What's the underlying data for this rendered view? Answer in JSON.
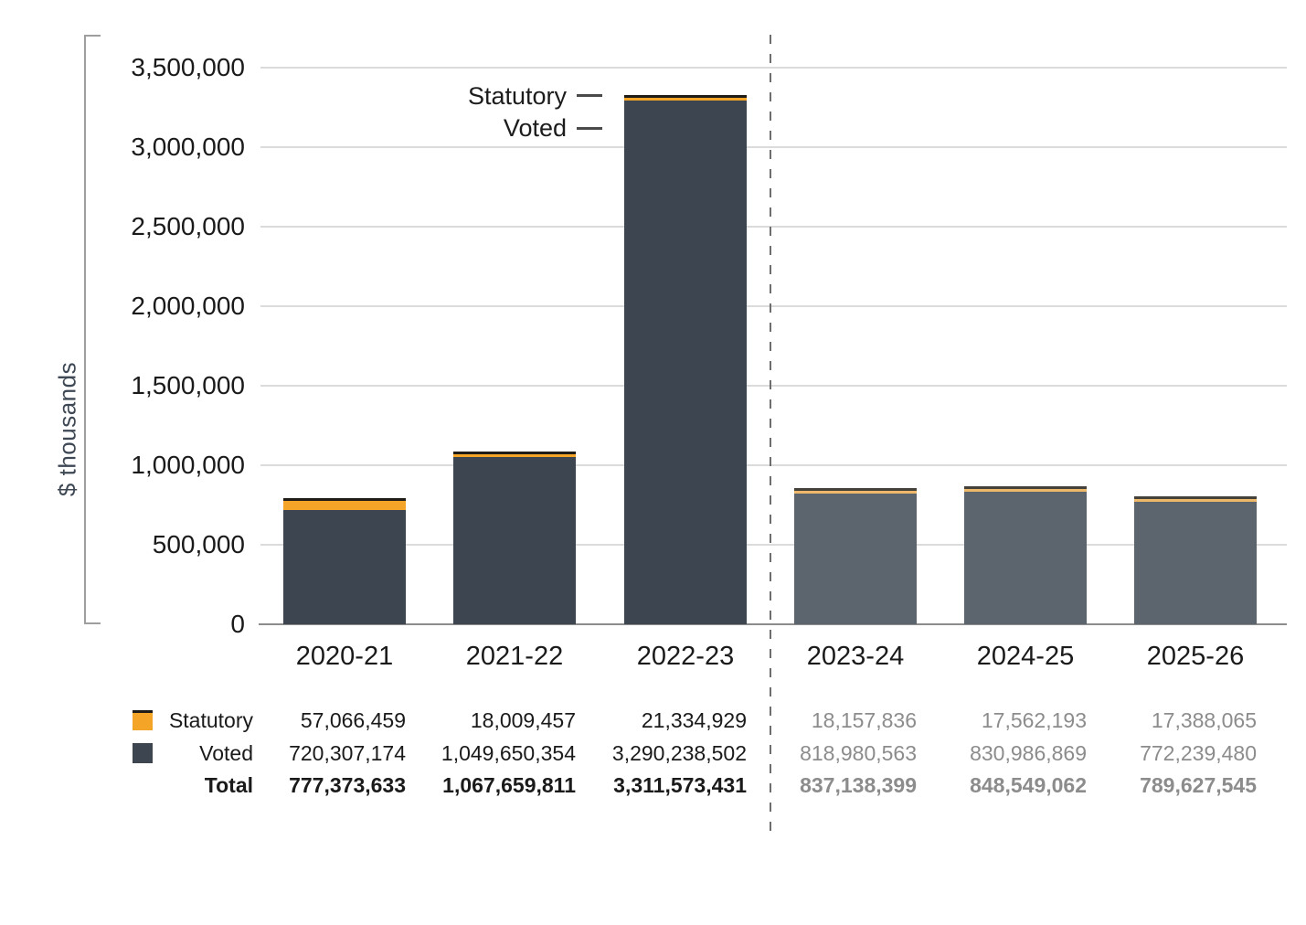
{
  "chart_data": {
    "type": "bar",
    "stacked": true,
    "ylabel": "$ thousands",
    "categories": [
      "2020-21",
      "2021-22",
      "2022-23",
      "2023-24",
      "2024-25",
      "2025-26"
    ],
    "series": [
      {
        "name": "Statutory",
        "values": [
          57066459,
          18009457,
          21334929,
          18157836,
          17562193,
          17388065
        ]
      },
      {
        "name": "Voted",
        "values": [
          720307174,
          1049650354,
          3290238502,
          818980563,
          830986869,
          772239480
        ]
      }
    ],
    "totals": [
      777373633,
      1067659811,
      3311573431,
      837138399,
      848549062,
      789627545
    ],
    "value_divisor_for_plot": 1000,
    "ylim": [
      0,
      3500000
    ],
    "ytick_step": 500000,
    "grid": true,
    "legend_position": "bottom-table",
    "forecast_from_index": 3,
    "annotations": {
      "statutory": "Statutory",
      "voted": "Voted"
    }
  },
  "table": {
    "rows": [
      {
        "label": "Statutory",
        "swatch": "statutory",
        "bold": false,
        "values": [
          "57,066,459",
          "18,009,457",
          "21,334,929",
          "18,157,836",
          "17,562,193",
          "17,388,065"
        ]
      },
      {
        "label": "Voted",
        "swatch": "voted",
        "bold": false,
        "values": [
          "720,307,174",
          "1,049,650,354",
          "3,290,238,502",
          "818,980,563",
          "830,986,869",
          "772,239,480"
        ]
      },
      {
        "label": "Total",
        "swatch": null,
        "bold": true,
        "values": [
          "777,373,633",
          "1,067,659,811",
          "3,311,573,431",
          "837,138,399",
          "848,549,062",
          "789,627,545"
        ]
      }
    ]
  },
  "colors": {
    "statutory": "#F4A426",
    "voted": "#3D4650",
    "cap": "#1F1B16",
    "statutory_forecast": "#EDB869",
    "voted_forecast": "#5C656E",
    "cap_forecast": "#44403A",
    "grid": "#DBDBDB",
    "axis": "#9E9E9E",
    "baseline": "#8C8C8C",
    "divider": "#6E6E6E",
    "text": "#1A1A1A",
    "text_forecast": "#8C8C8C",
    "axis_title_text": "#3E4854"
  }
}
